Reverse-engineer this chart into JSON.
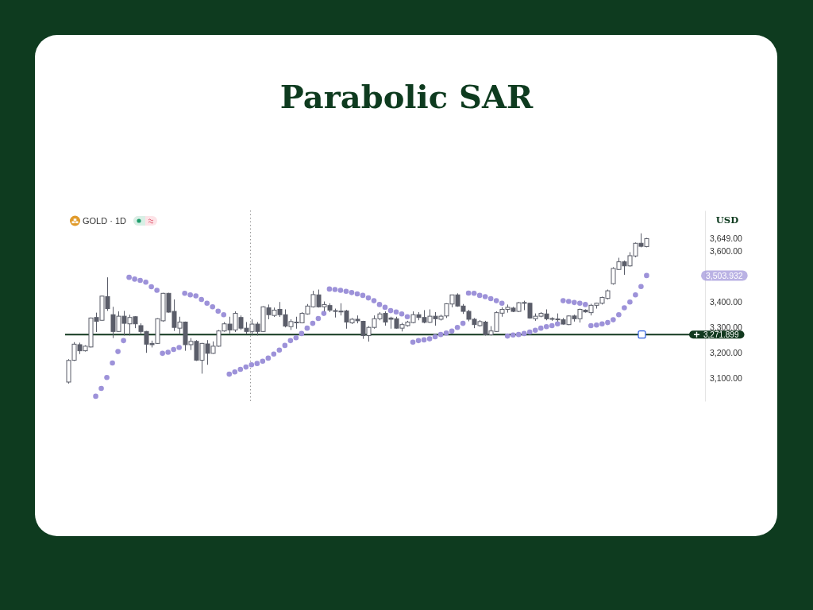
{
  "chart_data": {
    "type": "candlestick",
    "title": "Parabolic SAR",
    "subtitle": "GOLD · 1D",
    "ylabel": "USD",
    "tick_labels": "y",
    "marker": "circle",
    "categories": [
      null,
      null,
      null,
      null,
      null,
      null,
      null,
      null,
      null,
      null,
      null,
      null,
      null,
      null,
      null,
      null,
      null,
      null,
      null,
      null,
      null,
      null,
      null,
      null,
      null,
      null,
      null,
      null,
      null,
      null,
      null,
      null,
      null,
      null,
      null,
      null,
      null,
      null,
      null,
      null,
      null,
      null,
      null,
      null,
      null,
      null,
      null,
      null,
      null,
      null,
      null,
      null,
      null,
      null,
      null,
      null,
      null,
      null,
      null,
      null,
      null,
      null,
      null,
      null,
      null,
      null,
      null,
      null,
      null,
      null,
      null,
      null,
      null,
      null,
      null,
      null,
      null,
      null,
      null,
      null,
      null,
      null,
      null,
      null,
      null,
      null,
      null,
      null,
      null,
      null,
      null,
      null,
      null,
      null,
      null,
      null,
      null,
      null,
      null,
      null,
      null,
      null,
      null,
      null,
      null,
      null,
      null,
      null,
      null,
      null,
      null,
      null,
      null,
      null,
      null
    ],
    "ylim": [
      3010,
      3760
    ],
    "yticks": [
      {
        "value": 3100,
        "label": "3,100.00"
      },
      {
        "value": 3200,
        "label": "3,200.00"
      },
      {
        "value": 3300,
        "label": "3,300.00"
      },
      {
        "value": 3400,
        "label": "3,400.00"
      },
      {
        "value": 3600,
        "label": "3,600.00"
      },
      {
        "value": 3649,
        "label": "3,649.00"
      }
    ],
    "series": [
      {
        "type": "scatter",
        "color": "#9d92d9",
        "values": [
          null,
          null,
          null,
          null,
          null,
          3029,
          3060,
          3103,
          3160,
          3205,
          3248,
          3497,
          3490,
          3485,
          3478,
          3460,
          3446,
          3198,
          3202,
          3213,
          3221,
          3434,
          3428,
          3424,
          3410,
          3395,
          3381,
          3364,
          3350,
          3116,
          3125,
          3135,
          3144,
          3153,
          3158,
          3167,
          3179,
          3195,
          3211,
          3229,
          3248,
          3259,
          3276,
          3297,
          3316,
          3335,
          3355,
          3451,
          3449,
          3446,
          3442,
          3437,
          3432,
          3426,
          3416,
          3405,
          3390,
          3379,
          3366,
          3361,
          3353,
          3342,
          3242,
          3248,
          3251,
          3255,
          3263,
          3272,
          3278,
          3286,
          3300,
          3316,
          3435,
          3434,
          3426,
          3421,
          3413,
          3405,
          3395,
          3266,
          3270,
          3272,
          3276,
          3282,
          3289,
          3297,
          3303,
          3307,
          3314,
          3405,
          3402,
          3398,
          3395,
          3390,
          3307,
          3309,
          3314,
          3319,
          3330,
          3350,
          3377,
          3400,
          3428,
          3461,
          3504,
          null,
          null,
          null,
          null,
          null,
          null,
          null,
          null,
          null,
          null
        ]
      },
      {
        "color": "#5a5d69",
        "ohlc": [
          [
            3085,
            3175,
            3079,
            3170
          ],
          [
            3171,
            3242,
            3168,
            3234
          ],
          [
            3232,
            3240,
            3195,
            3208
          ],
          [
            3208,
            3230,
            3205,
            3226
          ],
          [
            3223,
            3339,
            3221,
            3337
          ],
          [
            3339,
            3358,
            3282,
            3324
          ],
          [
            3328,
            3425,
            3326,
            3423
          ],
          [
            3421,
            3497,
            3365,
            3374
          ],
          [
            3350,
            3381,
            3258,
            3284
          ],
          [
            3284,
            3363,
            3283,
            3344
          ],
          [
            3344,
            3365,
            3268,
            3316
          ],
          [
            3314,
            3350,
            3268,
            3339
          ],
          [
            3342,
            3344,
            3297,
            3314
          ],
          [
            3307,
            3316,
            3272,
            3284
          ],
          [
            3284,
            3286,
            3200,
            3234
          ],
          [
            3237,
            3248,
            3221,
            3232
          ],
          [
            3237,
            3336,
            3235,
            3334
          ],
          [
            3326,
            3436,
            3322,
            3434
          ],
          [
            3434,
            3436,
            3358,
            3360
          ],
          [
            3363,
            3410,
            3286,
            3300
          ],
          [
            3297,
            3342,
            3272,
            3321
          ],
          [
            3321,
            3323,
            3208,
            3232
          ],
          [
            3232,
            3258,
            3211,
            3245
          ],
          [
            3245,
            3250,
            3168,
            3171
          ],
          [
            3171,
            3239,
            3118,
            3237
          ],
          [
            3235,
            3250,
            3153,
            3198
          ],
          [
            3198,
            3245,
            3196,
            3226
          ],
          [
            3226,
            3290,
            3224,
            3286
          ],
          [
            3286,
            3321,
            3283,
            3314
          ],
          [
            3313,
            3342,
            3276,
            3290
          ],
          [
            3290,
            3363,
            3282,
            3355
          ],
          [
            3339,
            3347,
            3290,
            3297
          ],
          [
            3297,
            3321,
            3274,
            3284
          ],
          [
            3284,
            3332,
            3268,
            3313
          ],
          [
            3313,
            3321,
            3268,
            3284
          ],
          [
            3284,
            3383,
            3282,
            3381
          ],
          [
            3377,
            3390,
            3332,
            3350
          ],
          [
            3347,
            3378,
            3341,
            3368
          ],
          [
            3371,
            3400,
            3341,
            3350
          ],
          [
            3350,
            3371,
            3300,
            3305
          ],
          [
            3303,
            3332,
            3290,
            3323
          ],
          [
            3321,
            3342,
            3295,
            3318
          ],
          [
            3318,
            3360,
            3316,
            3355
          ],
          [
            3353,
            3392,
            3350,
            3384
          ],
          [
            3381,
            3444,
            3378,
            3429
          ],
          [
            3428,
            3449,
            3378,
            3381
          ],
          [
            3381,
            3402,
            3363,
            3390
          ],
          [
            3386,
            3395,
            3360,
            3368
          ],
          [
            3366,
            3374,
            3339,
            3364
          ],
          [
            3362,
            3395,
            3347,
            3364
          ],
          [
            3365,
            3369,
            3295,
            3321
          ],
          [
            3318,
            3337,
            3313,
            3332
          ],
          [
            3332,
            3347,
            3316,
            3326
          ],
          [
            3324,
            3326,
            3255,
            3268
          ],
          [
            3268,
            3305,
            3244,
            3300
          ],
          [
            3300,
            3347,
            3295,
            3334
          ],
          [
            3334,
            3360,
            3328,
            3353
          ],
          [
            3355,
            3363,
            3307,
            3321
          ],
          [
            3337,
            3342,
            3295,
            3332
          ],
          [
            3334,
            3342,
            3295,
            3297
          ],
          [
            3297,
            3318,
            3284,
            3311
          ],
          [
            3307,
            3326,
            3303,
            3321
          ],
          [
            3319,
            3363,
            3316,
            3350
          ],
          [
            3350,
            3360,
            3328,
            3339
          ],
          [
            3339,
            3368,
            3316,
            3320
          ],
          [
            3320,
            3371,
            3318,
            3344
          ],
          [
            3344,
            3360,
            3307,
            3334
          ],
          [
            3332,
            3350,
            3327,
            3344
          ],
          [
            3345,
            3395,
            3337,
            3393
          ],
          [
            3392,
            3428,
            3379,
            3428
          ],
          [
            3428,
            3434,
            3381,
            3384
          ],
          [
            3384,
            3392,
            3353,
            3363
          ],
          [
            3363,
            3369,
            3324,
            3332
          ],
          [
            3332,
            3337,
            3297,
            3311
          ],
          [
            3307,
            3329,
            3303,
            3323
          ],
          [
            3321,
            3326,
            3268,
            3271
          ],
          [
            3271,
            3305,
            3268,
            3286
          ],
          [
            3284,
            3363,
            3282,
            3358
          ],
          [
            3356,
            3379,
            3342,
            3371
          ],
          [
            3371,
            3390,
            3358,
            3379
          ],
          [
            3376,
            3381,
            3360,
            3363
          ],
          [
            3363,
            3400,
            3360,
            3397
          ],
          [
            3395,
            3405,
            3368,
            3398
          ],
          [
            3395,
            3397,
            3334,
            3337
          ],
          [
            3334,
            3355,
            3326,
            3344
          ],
          [
            3344,
            3360,
            3340,
            3355
          ],
          [
            3353,
            3371,
            3328,
            3334
          ],
          [
            3335,
            3340,
            3326,
            3333
          ],
          [
            3333,
            3355,
            3323,
            3331
          ],
          [
            3330,
            3337,
            3311,
            3313
          ],
          [
            3311,
            3347,
            3309,
            3345
          ],
          [
            3345,
            3350,
            3323,
            3334
          ],
          [
            3334,
            3374,
            3319,
            3371
          ],
          [
            3368,
            3371,
            3358,
            3361
          ],
          [
            3358,
            3393,
            3347,
            3387
          ],
          [
            3387,
            3397,
            3374,
            3395
          ],
          [
            3395,
            3421,
            3390,
            3418
          ],
          [
            3414,
            3449,
            3410,
            3444
          ],
          [
            3472,
            3537,
            3468,
            3532
          ],
          [
            3528,
            3574,
            3526,
            3558
          ],
          [
            3558,
            3563,
            3507,
            3542
          ],
          [
            3542,
            3596,
            3539,
            3582
          ],
          [
            3581,
            3634,
            3576,
            3631
          ],
          [
            3631,
            3670,
            3615,
            3619
          ],
          [
            3618,
            3652,
            3615,
            3649
          ],
          null,
          null,
          null,
          null,
          null,
          null,
          null,
          null,
          null,
          null
        ]
      }
    ],
    "ref_lines": [
      {
        "axis": "y",
        "value": 3271.899,
        "label": "3,271.899",
        "color": "#12391f"
      }
    ],
    "annotations": [
      "3,503.932"
    ]
  }
}
